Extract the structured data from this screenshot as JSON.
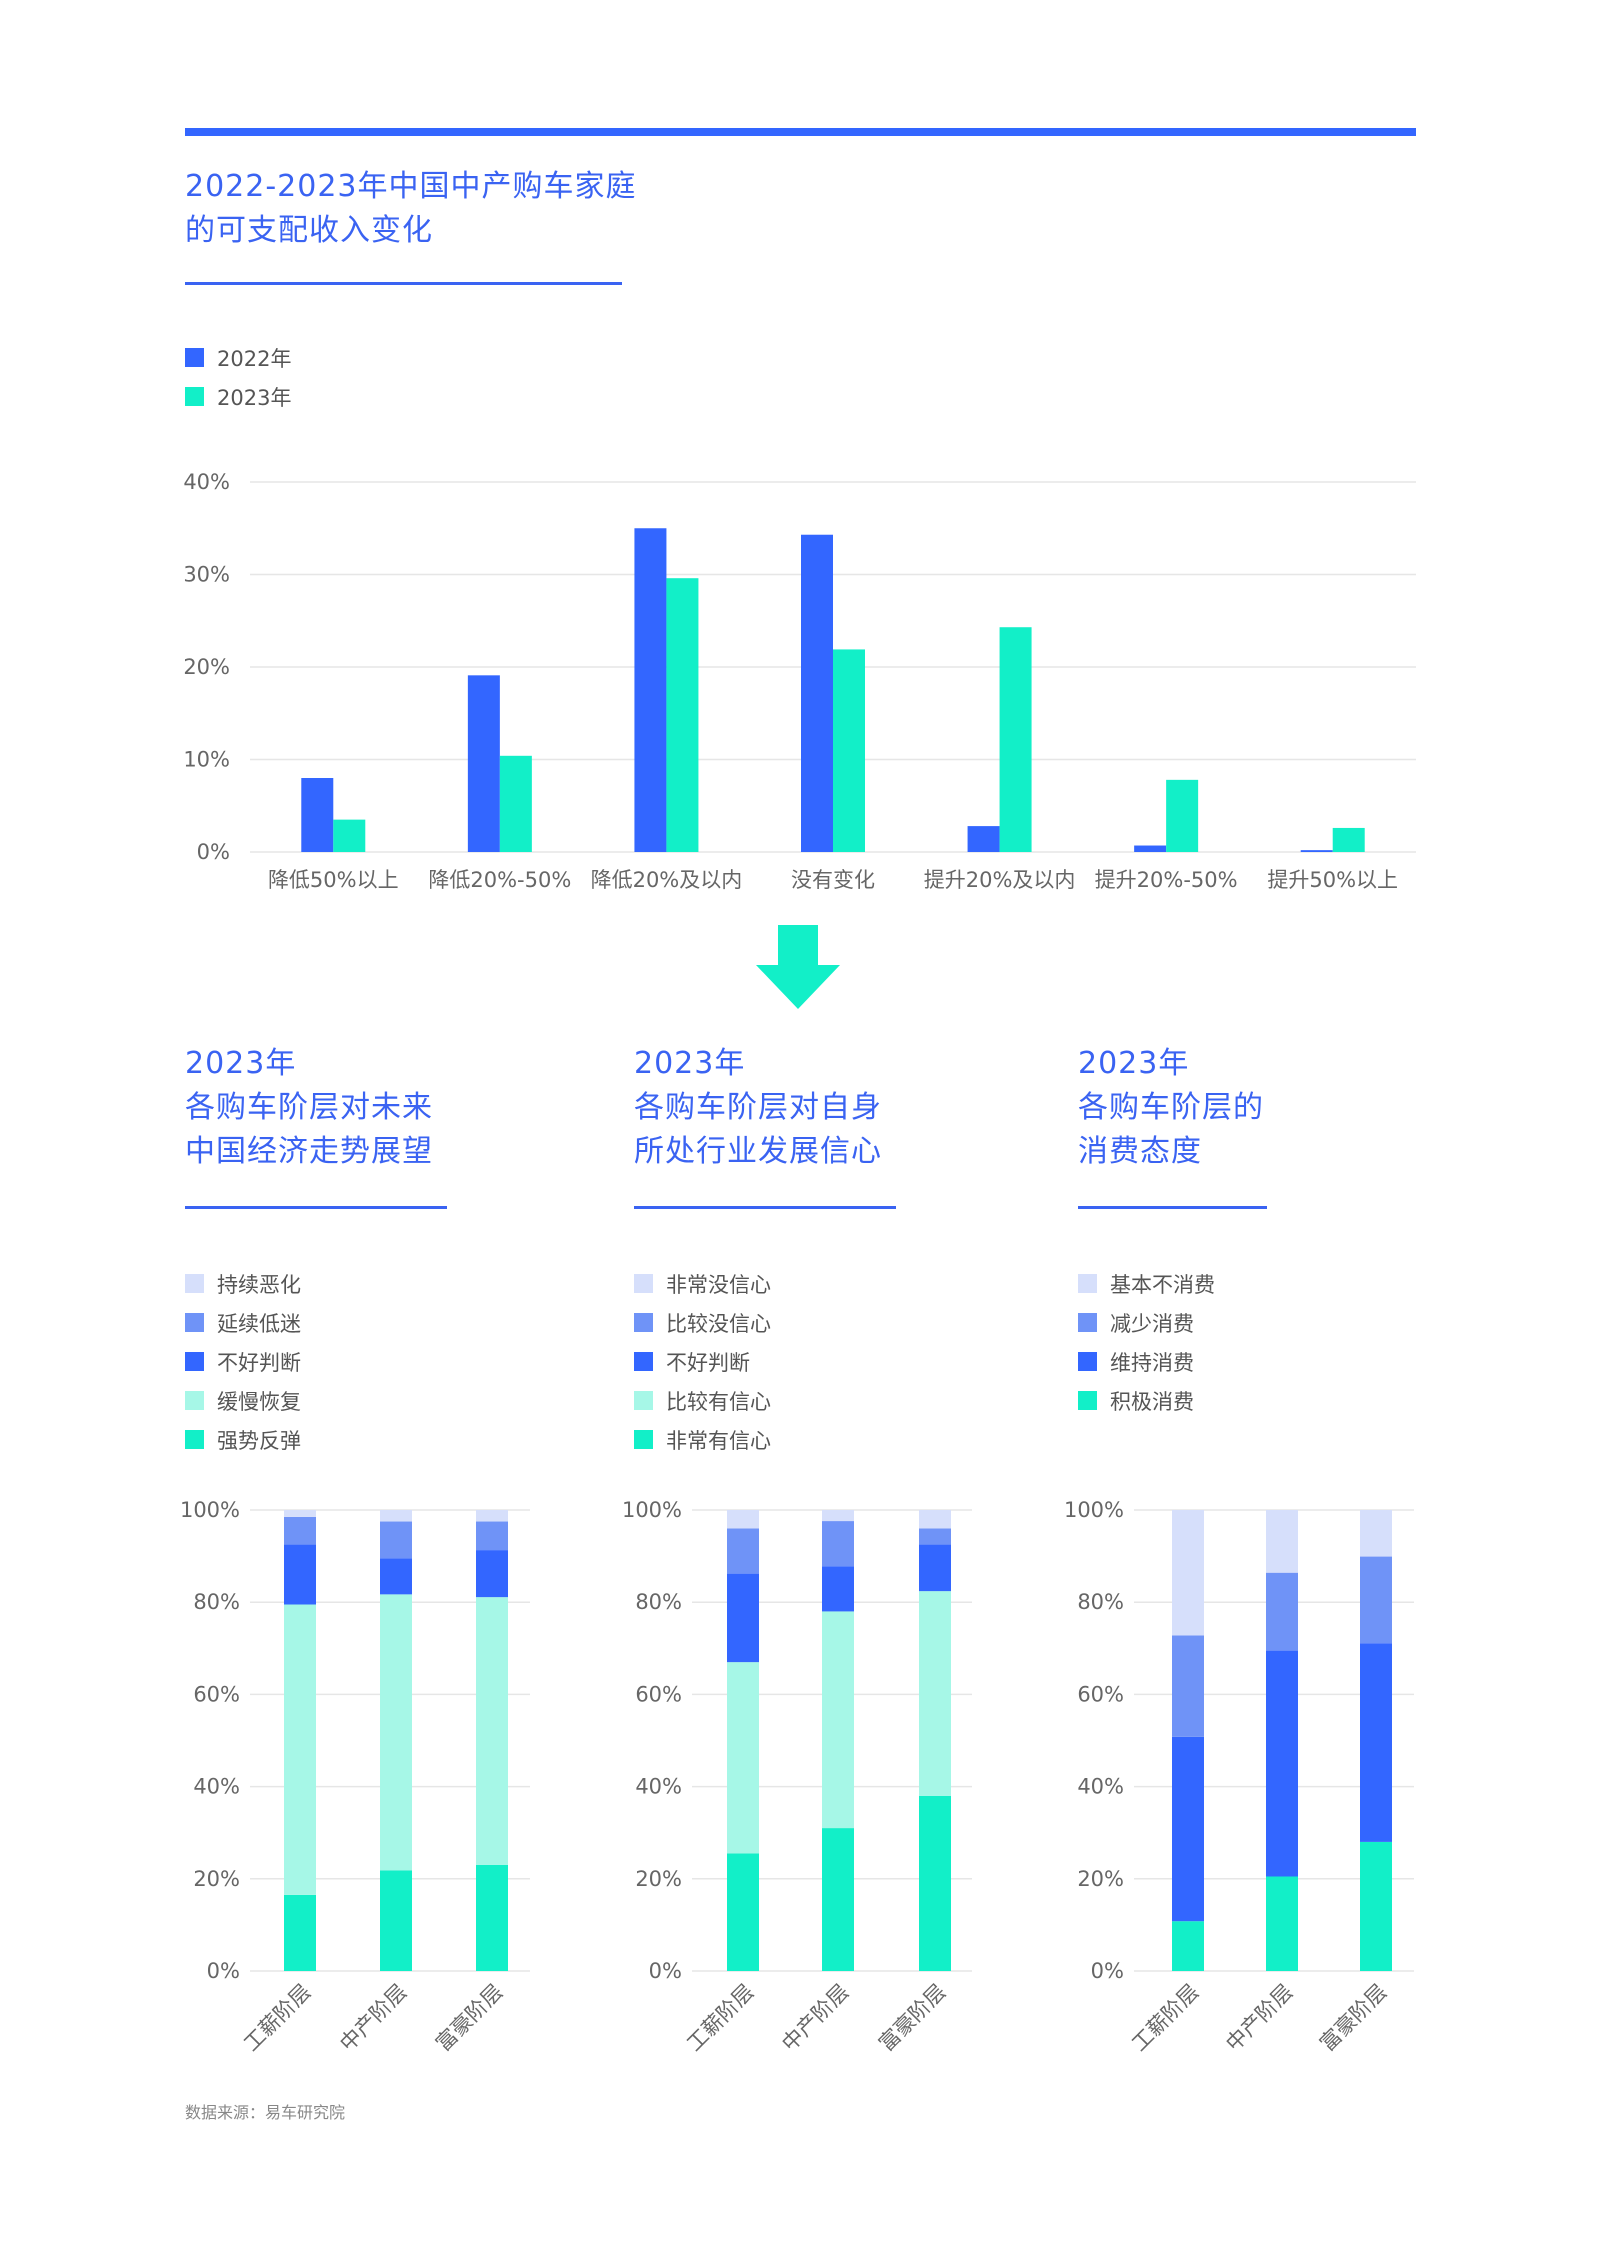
{
  "colors": {
    "accent": "#3366ff",
    "title_blue": "#3a63f2",
    "s2022": "#3366ff",
    "s2023": "#12efc8",
    "light_blue": "#d6dffb",
    "mid_blue": "#6f93f7",
    "dark_blue": "#3366ff",
    "light_green": "#a6f7e7",
    "green": "#12efc8"
  },
  "top": {
    "title_lines": [
      "2022-2023年中国中产购车家庭",
      "的可支配收入变化"
    ],
    "legend": [
      {
        "label": "2022年",
        "color": "#3366ff"
      },
      {
        "label": "2023年",
        "color": "#12efc8"
      }
    ]
  },
  "arrow_icon": "down-arrow-icon",
  "panels": [
    {
      "title_lines": [
        "2023年",
        "各购车阶层对未来",
        "中国经济走势展望"
      ],
      "legend": [
        {
          "label": "持续恶化",
          "color": "#d6dffb"
        },
        {
          "label": "延续低迷",
          "color": "#6f93f7"
        },
        {
          "label": "不好判断",
          "color": "#3366ff"
        },
        {
          "label": "缓慢恢复",
          "color": "#a6f7e7"
        },
        {
          "label": "强势反弹",
          "color": "#12efc8"
        }
      ]
    },
    {
      "title_lines": [
        "2023年",
        "各购车阶层对自身",
        "所处行业发展信心"
      ],
      "legend": [
        {
          "label": "非常没信心",
          "color": "#d6dffb"
        },
        {
          "label": "比较没信心",
          "color": "#6f93f7"
        },
        {
          "label": "不好判断",
          "color": "#3366ff"
        },
        {
          "label": "比较有信心",
          "color": "#a6f7e7"
        },
        {
          "label": "非常有信心",
          "color": "#12efc8"
        }
      ]
    },
    {
      "title_lines": [
        "2023年",
        "各购车阶层的",
        "消费态度"
      ],
      "legend": [
        {
          "label": "基本不消费",
          "color": "#d6dffb"
        },
        {
          "label": "减少消费",
          "color": "#6f93f7"
        },
        {
          "label": "维持消费",
          "color": "#3366ff"
        },
        {
          "label": "积极消费",
          "color": "#12efc8"
        }
      ]
    }
  ],
  "chart_data": [
    {
      "type": "bar",
      "title": "2022-2023年中国中产购车家庭的可支配收入变化",
      "categories": [
        "降低50%以上",
        "降低20%-50%",
        "降低20%及以内",
        "没有变化",
        "提升20%及以内",
        "提升20%-50%",
        "提升50%以上"
      ],
      "series": [
        {
          "name": "2022年",
          "color": "#3366ff",
          "values": [
            8.0,
            19.1,
            35.0,
            34.3,
            2.8,
            0.7,
            0.2
          ]
        },
        {
          "name": "2023年",
          "color": "#12efc8",
          "values": [
            3.5,
            10.4,
            29.6,
            21.9,
            24.3,
            7.8,
            2.6
          ]
        }
      ],
      "yticks": [
        "0%",
        "10%",
        "20%",
        "30%",
        "40%"
      ],
      "ylim": [
        0,
        40
      ],
      "grid": true,
      "legend_position": "top-left"
    },
    {
      "type": "bar",
      "stacked": true,
      "title": "2023年各购车阶层对未来中国经济走势展望",
      "categories": [
        "工薪阶层",
        "中产阶层",
        "富豪阶层"
      ],
      "series": [
        {
          "name": "强势反弹",
          "color": "#12efc8",
          "values": [
            16.5,
            21.8,
            23.0
          ]
        },
        {
          "name": "缓慢恢复",
          "color": "#a6f7e7",
          "values": [
            63.0,
            59.9,
            58.1
          ]
        },
        {
          "name": "不好判断",
          "color": "#3366ff",
          "values": [
            13.0,
            7.8,
            10.2
          ]
        },
        {
          "name": "延续低迷",
          "color": "#6f93f7",
          "values": [
            6.0,
            8.0,
            6.2
          ]
        },
        {
          "name": "持续恶化",
          "color": "#d6dffb",
          "values": [
            1.5,
            2.5,
            2.5
          ]
        }
      ],
      "yticks": [
        "0%",
        "20%",
        "40%",
        "60%",
        "80%",
        "100%"
      ],
      "ylim": [
        0,
        100
      ],
      "grid": true
    },
    {
      "type": "bar",
      "stacked": true,
      "title": "2023年各购车阶层对自身所处行业发展信心",
      "categories": [
        "工薪阶层",
        "中产阶层",
        "富豪阶层"
      ],
      "series": [
        {
          "name": "非常有信心",
          "color": "#12efc8",
          "values": [
            25.5,
            31.0,
            38.0
          ]
        },
        {
          "name": "比较有信心",
          "color": "#a6f7e7",
          "values": [
            41.5,
            47.0,
            44.4
          ]
        },
        {
          "name": "不好判断",
          "color": "#3366ff",
          "values": [
            19.2,
            9.8,
            10.1
          ]
        },
        {
          "name": "比较没信心",
          "color": "#6f93f7",
          "values": [
            9.8,
            9.8,
            3.5
          ]
        },
        {
          "name": "非常没信心",
          "color": "#d6dffb",
          "values": [
            4.0,
            2.4,
            4.0
          ]
        }
      ],
      "yticks": [
        "0%",
        "20%",
        "40%",
        "60%",
        "80%",
        "100%"
      ],
      "ylim": [
        0,
        100
      ],
      "grid": true
    },
    {
      "type": "bar",
      "stacked": true,
      "title": "2023年各购车阶层的消费态度",
      "categories": [
        "工薪阶层",
        "中产阶层",
        "富豪阶层"
      ],
      "series": [
        {
          "name": "积极消费",
          "color": "#12efc8",
          "values": [
            10.8,
            20.5,
            28.0
          ]
        },
        {
          "name": "维持消费",
          "color": "#3366ff",
          "values": [
            40.0,
            49.0,
            43.1
          ]
        },
        {
          "name": "减少消费",
          "color": "#6f93f7",
          "values": [
            22.0,
            16.9,
            18.8
          ]
        },
        {
          "name": "基本不消费",
          "color": "#d6dffb",
          "values": [
            27.2,
            13.6,
            10.1
          ]
        }
      ],
      "yticks": [
        "0%",
        "20%",
        "40%",
        "60%",
        "80%",
        "100%"
      ],
      "ylim": [
        0,
        100
      ],
      "grid": true
    }
  ],
  "source": "数据来源：易车研究院"
}
